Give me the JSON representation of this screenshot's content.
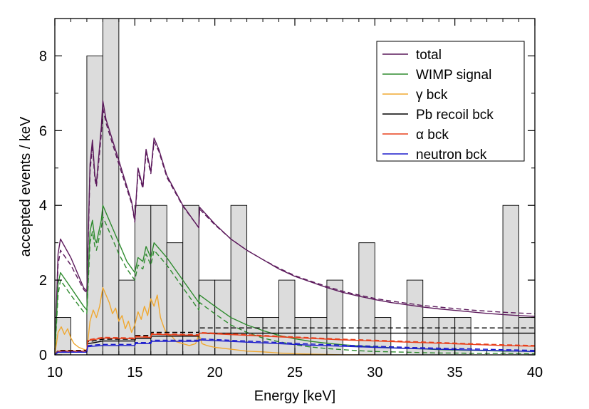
{
  "chart_data": {
    "type": "line",
    "title": "",
    "xlabel": "Energy [keV]",
    "ylabel": "accepted events / keV",
    "xlim": [
      10,
      40
    ],
    "ylim": [
      0,
      9
    ],
    "x_ticks": [
      "10",
      "15",
      "20",
      "25",
      "30",
      "35",
      "40"
    ],
    "y_ticks": [
      "0",
      "2",
      "4",
      "6",
      "8"
    ],
    "grid": false,
    "legend_position": "top-right",
    "histogram": {
      "bin_edges": [
        10,
        11,
        12,
        13,
        14,
        15,
        16,
        17,
        18,
        19,
        20,
        21,
        22,
        23,
        24,
        25,
        26,
        27,
        28,
        29,
        30,
        31,
        32,
        33,
        34,
        35,
        36,
        37,
        38,
        39,
        40
      ],
      "counts": [
        1,
        0,
        8,
        9,
        2,
        4,
        4,
        3,
        4,
        2,
        2,
        4,
        1,
        1,
        2,
        1,
        1,
        2,
        0,
        3,
        1,
        0,
        2,
        1,
        1,
        1,
        0,
        0,
        4,
        1
      ],
      "fill": "#dcdcdc",
      "stroke": "#000000"
    },
    "series": [
      {
        "name": "total",
        "color": "#5c1a5c",
        "style": "solid",
        "x": [
          10,
          10.2,
          10.35,
          11,
          11.8,
          12,
          12.2,
          12.35,
          12.5,
          12.6,
          12.9,
          13,
          13.2,
          14,
          14.8,
          15,
          15.2,
          15.5,
          15.7,
          16,
          16.2,
          16.5,
          17,
          18,
          19,
          19.05,
          20,
          21,
          22,
          23,
          24,
          25,
          26,
          27,
          28,
          29,
          30,
          31,
          32,
          33,
          34,
          35,
          36,
          37,
          38,
          39,
          40
        ],
        "y": [
          0,
          2.7,
          3.1,
          2.6,
          1.8,
          1.7,
          5.1,
          5.75,
          4.8,
          4.6,
          6.1,
          6.8,
          6.3,
          5.2,
          4.1,
          3.6,
          5.0,
          4.5,
          5.5,
          4.9,
          5.8,
          5.5,
          4.8,
          4.0,
          3.4,
          3.95,
          3.5,
          3.1,
          2.8,
          2.55,
          2.3,
          2.1,
          1.95,
          1.8,
          1.67,
          1.57,
          1.48,
          1.4,
          1.34,
          1.28,
          1.23,
          1.19,
          1.15,
          1.11,
          1.08,
          1.05,
          1.03
        ]
      },
      {
        "name": "",
        "color": "#5c1a5c",
        "style": "dashed",
        "x": [
          10,
          10.2,
          10.35,
          11,
          11.8,
          12,
          12.2,
          12.35,
          12.5,
          12.6,
          12.9,
          13,
          13.2,
          14,
          14.8,
          15,
          15.2,
          15.5,
          15.7,
          16,
          16.2,
          16.5,
          17,
          18,
          19,
          19.05,
          20,
          21,
          22,
          23,
          24,
          25,
          26,
          27,
          28,
          29,
          30,
          31,
          32,
          33,
          34,
          35,
          36,
          37,
          38,
          39,
          40
        ],
        "y": [
          0,
          2.4,
          2.8,
          2.4,
          1.75,
          1.65,
          4.9,
          5.6,
          4.7,
          4.5,
          5.9,
          6.6,
          6.2,
          5.1,
          4.05,
          3.55,
          4.9,
          4.45,
          5.4,
          4.85,
          5.7,
          5.45,
          4.75,
          3.98,
          3.4,
          3.9,
          3.48,
          3.1,
          2.8,
          2.55,
          2.32,
          2.12,
          1.97,
          1.83,
          1.7,
          1.6,
          1.51,
          1.44,
          1.38,
          1.32,
          1.28,
          1.24,
          1.2,
          1.17,
          1.14,
          1.12,
          1.1
        ]
      },
      {
        "name": "WIMP signal",
        "color": "#2e8b2e",
        "style": "solid",
        "x": [
          10,
          10.2,
          10.35,
          11,
          11.8,
          12,
          12.2,
          12.35,
          12.5,
          12.6,
          12.9,
          13,
          13.5,
          14,
          14.5,
          15,
          15.2,
          15.5,
          15.7,
          16,
          16.2,
          17,
          18,
          19,
          19.05,
          20,
          21,
          22,
          23,
          24,
          25,
          26,
          27,
          28,
          29,
          30,
          31,
          32,
          33,
          34,
          35,
          36,
          37,
          38,
          39,
          40
        ],
        "y": [
          0,
          1.9,
          2.2,
          1.8,
          1.3,
          1.2,
          3.3,
          3.6,
          3.1,
          3.0,
          3.6,
          4.0,
          3.5,
          3.0,
          2.5,
          2.2,
          2.6,
          2.5,
          2.9,
          2.6,
          3.0,
          2.6,
          2.0,
          1.4,
          1.6,
          1.3,
          1.0,
          0.8,
          0.65,
          0.52,
          0.43,
          0.36,
          0.31,
          0.27,
          0.24,
          0.21,
          0.19,
          0.17,
          0.16,
          0.14,
          0.13,
          0.12,
          0.11,
          0.1,
          0.1,
          0.09
        ]
      },
      {
        "name": "",
        "color": "#2e8b2e",
        "style": "dashed",
        "x": [
          10,
          10.2,
          10.35,
          11,
          11.8,
          12,
          12.2,
          12.35,
          12.5,
          12.6,
          12.9,
          13,
          13.5,
          14,
          14.5,
          15,
          15.2,
          15.5,
          15.7,
          16,
          16.2,
          17,
          18,
          19,
          19.05,
          20,
          21,
          22,
          23,
          24,
          25,
          26,
          27,
          28,
          29,
          30,
          31,
          32,
          33,
          34,
          35,
          36,
          37,
          38,
          39,
          40
        ],
        "y": [
          0,
          1.6,
          2.0,
          1.6,
          1.15,
          1.1,
          3.0,
          3.3,
          2.9,
          2.8,
          3.4,
          3.7,
          3.2,
          2.7,
          2.3,
          2.0,
          2.4,
          2.3,
          2.7,
          2.4,
          2.8,
          2.4,
          1.8,
          1.2,
          1.4,
          1.1,
          0.8,
          0.6,
          0.45,
          0.35,
          0.27,
          0.21,
          0.17,
          0.14,
          0.11,
          0.09,
          0.08,
          0.07,
          0.06,
          0.05,
          0.05,
          0.04,
          0.04,
          0.04,
          0.03,
          0.03
        ]
      },
      {
        "name": "γ bck",
        "color": "#f0a830",
        "style": "solid",
        "x": [
          10,
          10.2,
          10.4,
          10.6,
          10.8,
          11.0,
          11.2,
          11.5,
          11.8,
          12.0,
          12.2,
          12.4,
          12.6,
          12.8,
          13.0,
          13.2,
          13.4,
          13.6,
          13.8,
          14.0,
          14.2,
          14.4,
          14.6,
          14.8,
          15.0,
          15.2,
          15.4,
          15.6,
          15.8,
          16.0,
          16.2,
          16.4,
          16.6,
          16.8,
          17.0,
          17.3,
          17.6,
          18.0,
          18.4,
          18.8,
          19.0,
          19.2,
          19.5,
          20,
          21,
          22,
          23,
          24,
          25,
          26,
          27,
          28,
          29,
          30
        ],
        "y": [
          0,
          0.6,
          0.75,
          0.55,
          0.7,
          0.45,
          0.3,
          0.2,
          0.15,
          0.12,
          0.9,
          1.2,
          1.0,
          1.3,
          1.8,
          1.6,
          1.4,
          1.1,
          1.25,
          0.9,
          1.05,
          0.7,
          0.9,
          0.6,
          0.8,
          1.15,
          0.95,
          1.3,
          1.05,
          1.5,
          1.3,
          1.6,
          1.0,
          0.75,
          0.55,
          0.5,
          0.35,
          0.3,
          0.25,
          0.3,
          0.55,
          0.3,
          0.25,
          0.2,
          0.15,
          0.1,
          0.08,
          0.05,
          0.03,
          0.02,
          0.01,
          0.0,
          0.0,
          0.0
        ]
      },
      {
        "name": "Pb recoil bck",
        "color": "#000000",
        "style": "solid",
        "x": [
          10,
          10.2,
          12.0,
          12.05,
          12.5,
          13.0,
          15.0,
          15.05,
          16.0,
          16.05,
          19.0,
          19.05,
          40
        ],
        "y": [
          0,
          0.1,
          0.1,
          0.3,
          0.33,
          0.37,
          0.37,
          0.44,
          0.44,
          0.5,
          0.5,
          0.58,
          0.58
        ]
      },
      {
        "name": "",
        "color": "#000000",
        "style": "dashed",
        "x": [
          10,
          10.2,
          12.0,
          12.05,
          12.5,
          13.0,
          15.0,
          15.05,
          16.0,
          16.05,
          19.0,
          19.05,
          40
        ],
        "y": [
          0,
          0.12,
          0.12,
          0.35,
          0.38,
          0.42,
          0.42,
          0.52,
          0.52,
          0.6,
          0.6,
          0.72,
          0.72
        ]
      },
      {
        "name": "α bck",
        "color": "#e8401c",
        "style": "solid",
        "x": [
          10,
          10.2,
          12.0,
          12.05,
          13.0,
          14.0,
          15.0,
          15.05,
          16.0,
          16.05,
          17.0,
          18.0,
          19.0,
          19.05,
          20,
          22,
          24,
          26,
          28,
          30,
          32,
          34,
          36,
          38,
          40
        ],
        "y": [
          0,
          0.1,
          0.1,
          0.38,
          0.45,
          0.44,
          0.43,
          0.48,
          0.47,
          0.55,
          0.54,
          0.53,
          0.52,
          0.58,
          0.56,
          0.52,
          0.48,
          0.44,
          0.4,
          0.37,
          0.34,
          0.31,
          0.28,
          0.25,
          0.23
        ]
      },
      {
        "name": "",
        "color": "#e8401c",
        "style": "dashed",
        "x": [
          10,
          10.2,
          12.0,
          12.05,
          13.0,
          14.0,
          15.0,
          15.05,
          16.0,
          16.05,
          17.0,
          18.0,
          19.0,
          19.05,
          20,
          22,
          24,
          26,
          28,
          30,
          32,
          34,
          36,
          38,
          40
        ],
        "y": [
          0,
          0.1,
          0.1,
          0.4,
          0.47,
          0.46,
          0.45,
          0.5,
          0.49,
          0.57,
          0.56,
          0.55,
          0.54,
          0.6,
          0.58,
          0.54,
          0.5,
          0.46,
          0.42,
          0.39,
          0.36,
          0.33,
          0.3,
          0.27,
          0.25
        ]
      },
      {
        "name": "neutron bck",
        "color": "#1a1acc",
        "style": "solid",
        "x": [
          10,
          10.2,
          12.0,
          12.05,
          13.0,
          14.0,
          15.0,
          15.05,
          16.0,
          16.05,
          17.0,
          18.0,
          19.0,
          19.05,
          20,
          22,
          24,
          26,
          28,
          30,
          32,
          34,
          36,
          38,
          40
        ],
        "y": [
          0,
          0.07,
          0.07,
          0.22,
          0.25,
          0.25,
          0.25,
          0.3,
          0.3,
          0.36,
          0.36,
          0.36,
          0.36,
          0.4,
          0.38,
          0.34,
          0.3,
          0.26,
          0.23,
          0.2,
          0.17,
          0.15,
          0.13,
          0.11,
          0.09
        ]
      },
      {
        "name": "",
        "color": "#1a1acc",
        "style": "dashed",
        "x": [
          10,
          10.2,
          12.0,
          12.05,
          13.0,
          14.0,
          15.0,
          15.05,
          16.0,
          16.05,
          17.0,
          18.0,
          19.0,
          19.05,
          20,
          22,
          24,
          26,
          28,
          30,
          32,
          34,
          36,
          38,
          40
        ],
        "y": [
          0,
          0.08,
          0.08,
          0.25,
          0.28,
          0.28,
          0.28,
          0.33,
          0.33,
          0.39,
          0.39,
          0.39,
          0.39,
          0.43,
          0.41,
          0.37,
          0.33,
          0.29,
          0.26,
          0.23,
          0.2,
          0.18,
          0.16,
          0.14,
          0.12
        ]
      }
    ]
  }
}
